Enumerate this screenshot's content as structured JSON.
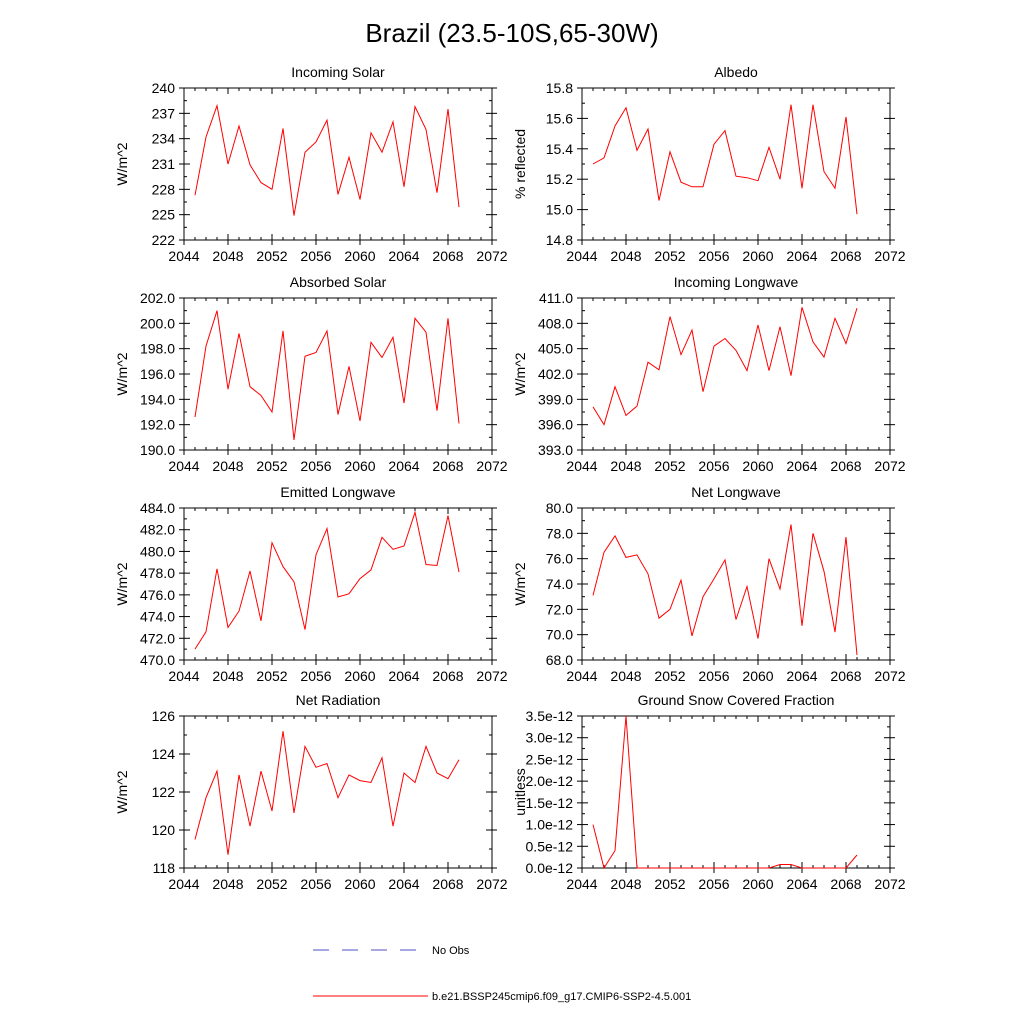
{
  "page_title": "Brazil (23.5-10S,65-30W)",
  "colors": {
    "series": "#ff0000",
    "obs": "#4f4fc8",
    "axis": "#000000",
    "background": "#ffffff"
  },
  "legend": {
    "obs_label": "No Obs",
    "model_label": "b.e21.BSSP245cmip6.f09_g17.CMIP6-SSP2-4.5.001"
  },
  "chart_data": [
    {
      "type": "line",
      "title": "Incoming Solar",
      "xlabel": "",
      "ylabel": "W/m^2",
      "xlim": [
        2044,
        2072
      ],
      "ylim": [
        222,
        240
      ],
      "xticks": [
        2044,
        2048,
        2052,
        2056,
        2060,
        2064,
        2068,
        2072
      ],
      "yticks": [
        222,
        225,
        228,
        231,
        234,
        237,
        240
      ],
      "ytick_labels": [
        "222",
        "225",
        "228",
        "231",
        "234",
        "237",
        "240"
      ],
      "series": [
        {
          "name": "b.e21.BSSP245cmip6.f09_g17.CMIP6-SSP2-4.5.001",
          "x": [
            2045,
            2046,
            2047,
            2048,
            2049,
            2050,
            2051,
            2052,
            2053,
            2054,
            2055,
            2056,
            2057,
            2058,
            2059,
            2060,
            2061,
            2062,
            2063,
            2064,
            2065,
            2066,
            2067,
            2068,
            2069
          ],
          "values": [
            227.3,
            234.2,
            237.9,
            231.0,
            235.5,
            230.9,
            228.8,
            228.0,
            235.2,
            224.9,
            232.4,
            233.6,
            236.2,
            227.4,
            231.8,
            226.8,
            234.7,
            232.4,
            236.0,
            228.3,
            237.8,
            235.1,
            227.6,
            237.5,
            225.9
          ]
        }
      ]
    },
    {
      "type": "line",
      "title": "Albedo",
      "xlabel": "",
      "ylabel": "% reflected",
      "xlim": [
        2044,
        2072
      ],
      "ylim": [
        14.8,
        15.8
      ],
      "xticks": [
        2044,
        2048,
        2052,
        2056,
        2060,
        2064,
        2068,
        2072
      ],
      "yticks": [
        14.8,
        15.0,
        15.2,
        15.4,
        15.6,
        15.8
      ],
      "ytick_labels": [
        "14.8",
        "15.0",
        "15.2",
        "15.4",
        "15.6",
        "15.8"
      ],
      "series": [
        {
          "name": "b.e21.BSSP245cmip6.f09_g17.CMIP6-SSP2-4.5.001",
          "x": [
            2045,
            2046,
            2047,
            2048,
            2049,
            2050,
            2051,
            2052,
            2053,
            2054,
            2055,
            2056,
            2057,
            2058,
            2059,
            2060,
            2061,
            2062,
            2063,
            2064,
            2065,
            2066,
            2067,
            2068,
            2069
          ],
          "values": [
            15.3,
            15.34,
            15.55,
            15.67,
            15.39,
            15.53,
            15.06,
            15.38,
            15.18,
            15.15,
            15.15,
            15.43,
            15.52,
            15.22,
            15.21,
            15.19,
            15.41,
            15.2,
            15.69,
            15.14,
            15.69,
            15.25,
            15.14,
            15.61,
            14.97
          ]
        }
      ]
    },
    {
      "type": "line",
      "title": "Absorbed Solar",
      "xlabel": "",
      "ylabel": "W/m^2",
      "xlim": [
        2044,
        2072
      ],
      "ylim": [
        190.0,
        202.0
      ],
      "xticks": [
        2044,
        2048,
        2052,
        2056,
        2060,
        2064,
        2068,
        2072
      ],
      "yticks": [
        190.0,
        192.0,
        194.0,
        196.0,
        198.0,
        200.0,
        202.0
      ],
      "ytick_labels": [
        "190.0",
        "192.0",
        "194.0",
        "196.0",
        "198.0",
        "200.0",
        "202.0"
      ],
      "series": [
        {
          "name": "b.e21.BSSP245cmip6.f09_g17.CMIP6-SSP2-4.5.001",
          "x": [
            2045,
            2046,
            2047,
            2048,
            2049,
            2050,
            2051,
            2052,
            2053,
            2054,
            2055,
            2056,
            2057,
            2058,
            2059,
            2060,
            2061,
            2062,
            2063,
            2064,
            2065,
            2066,
            2067,
            2068,
            2069
          ],
          "values": [
            192.6,
            198.2,
            201.0,
            194.8,
            199.2,
            195.0,
            194.3,
            193.0,
            199.4,
            190.8,
            197.4,
            197.7,
            199.4,
            192.8,
            196.6,
            192.3,
            198.5,
            197.3,
            198.9,
            193.7,
            200.4,
            199.3,
            193.1,
            200.4,
            192.1
          ]
        }
      ]
    },
    {
      "type": "line",
      "title": "Incoming Longwave",
      "xlabel": "",
      "ylabel": "W/m^2",
      "xlim": [
        2044,
        2072
      ],
      "ylim": [
        393.0,
        411.0
      ],
      "xticks": [
        2044,
        2048,
        2052,
        2056,
        2060,
        2064,
        2068,
        2072
      ],
      "yticks": [
        393.0,
        396.0,
        399.0,
        402.0,
        405.0,
        408.0,
        411.0
      ],
      "ytick_labels": [
        "393.0",
        "396.0",
        "399.0",
        "402.0",
        "405.0",
        "408.0",
        "411.0"
      ],
      "series": [
        {
          "name": "b.e21.BSSP245cmip6.f09_g17.CMIP6-SSP2-4.5.001",
          "x": [
            2045,
            2046,
            2047,
            2048,
            2049,
            2050,
            2051,
            2052,
            2053,
            2054,
            2055,
            2056,
            2057,
            2058,
            2059,
            2060,
            2061,
            2062,
            2063,
            2064,
            2065,
            2066,
            2067,
            2068,
            2069
          ],
          "values": [
            398.1,
            396.0,
            400.5,
            397.1,
            398.2,
            403.4,
            402.5,
            408.8,
            404.3,
            407.2,
            399.9,
            405.3,
            406.2,
            404.8,
            402.4,
            407.8,
            402.4,
            407.6,
            401.8,
            409.9,
            405.8,
            404.0,
            408.6,
            405.6,
            409.8
          ]
        }
      ]
    },
    {
      "type": "line",
      "title": "Emitted Longwave",
      "xlabel": "",
      "ylabel": "W/m^2",
      "xlim": [
        2044,
        2072
      ],
      "ylim": [
        470.0,
        484.0
      ],
      "xticks": [
        2044,
        2048,
        2052,
        2056,
        2060,
        2064,
        2068,
        2072
      ],
      "yticks": [
        470.0,
        472.0,
        474.0,
        476.0,
        478.0,
        480.0,
        482.0,
        484.0
      ],
      "ytick_labels": [
        "470.0",
        "472.0",
        "474.0",
        "476.0",
        "478.0",
        "480.0",
        "482.0",
        "484.0"
      ],
      "series": [
        {
          "name": "b.e21.BSSP245cmip6.f09_g17.CMIP6-SSP2-4.5.001",
          "x": [
            2045,
            2046,
            2047,
            2048,
            2049,
            2050,
            2051,
            2052,
            2053,
            2054,
            2055,
            2056,
            2057,
            2058,
            2059,
            2060,
            2061,
            2062,
            2063,
            2064,
            2065,
            2066,
            2067,
            2068,
            2069
          ],
          "values": [
            471.0,
            472.6,
            478.4,
            473.0,
            474.5,
            478.2,
            473.6,
            480.8,
            478.6,
            477.2,
            472.8,
            479.7,
            482.1,
            475.8,
            476.1,
            477.5,
            478.3,
            481.3,
            480.2,
            480.5,
            483.6,
            478.8,
            478.7,
            483.3,
            478.1
          ]
        }
      ]
    },
    {
      "type": "line",
      "title": "Net Longwave",
      "xlabel": "",
      "ylabel": "W/m^2",
      "xlim": [
        2044,
        2072
      ],
      "ylim": [
        68.0,
        80.0
      ],
      "xticks": [
        2044,
        2048,
        2052,
        2056,
        2060,
        2064,
        2068,
        2072
      ],
      "yticks": [
        68.0,
        70.0,
        72.0,
        74.0,
        76.0,
        78.0,
        80.0
      ],
      "ytick_labels": [
        "68.0",
        "70.0",
        "72.0",
        "74.0",
        "76.0",
        "78.0",
        "80.0"
      ],
      "series": [
        {
          "name": "b.e21.BSSP245cmip6.f09_g17.CMIP6-SSP2-4.5.001",
          "x": [
            2045,
            2046,
            2047,
            2048,
            2049,
            2050,
            2051,
            2052,
            2053,
            2054,
            2055,
            2056,
            2057,
            2058,
            2059,
            2060,
            2061,
            2062,
            2063,
            2064,
            2065,
            2066,
            2067,
            2068,
            2069
          ],
          "values": [
            73.1,
            76.5,
            77.8,
            76.1,
            76.3,
            74.8,
            71.3,
            72.0,
            74.3,
            69.9,
            73.0,
            74.4,
            75.9,
            71.2,
            73.8,
            69.7,
            76.0,
            73.6,
            78.7,
            70.7,
            78.0,
            75.0,
            70.2,
            77.7,
            68.4
          ]
        }
      ]
    },
    {
      "type": "line",
      "title": "Net Radiation",
      "xlabel": "",
      "ylabel": "W/m^2",
      "xlim": [
        2044,
        2072
      ],
      "ylim": [
        118,
        126
      ],
      "xticks": [
        2044,
        2048,
        2052,
        2056,
        2060,
        2064,
        2068,
        2072
      ],
      "yticks": [
        118,
        120,
        122,
        124,
        126
      ],
      "ytick_labels": [
        "118",
        "120",
        "122",
        "124",
        "126"
      ],
      "series": [
        {
          "name": "b.e21.BSSP245cmip6.f09_g17.CMIP6-SSP2-4.5.001",
          "x": [
            2045,
            2046,
            2047,
            2048,
            2049,
            2050,
            2051,
            2052,
            2053,
            2054,
            2055,
            2056,
            2057,
            2058,
            2059,
            2060,
            2061,
            2062,
            2063,
            2064,
            2065,
            2066,
            2067,
            2068,
            2069
          ],
          "values": [
            119.5,
            121.7,
            123.1,
            118.7,
            122.9,
            120.2,
            123.1,
            121.0,
            125.2,
            120.9,
            124.4,
            123.3,
            123.5,
            121.7,
            122.9,
            122.6,
            122.5,
            123.8,
            120.2,
            123.0,
            122.5,
            124.4,
            123.0,
            122.7,
            123.7
          ]
        }
      ]
    },
    {
      "type": "line",
      "title": "Ground Snow Covered Fraction",
      "xlabel": "",
      "ylabel": "unitless",
      "xlim": [
        2044,
        2072
      ],
      "ylim": [
        0.0,
        3.5e-12
      ],
      "xticks": [
        2044,
        2048,
        2052,
        2056,
        2060,
        2064,
        2068,
        2072
      ],
      "yticks": [
        0.0,
        5e-13,
        1e-12,
        1.5e-12,
        2e-12,
        2.5e-12,
        3e-12,
        3.5e-12
      ],
      "ytick_labels": [
        "0.0e-12",
        "0.5e-12",
        "1.0e-12",
        "1.5e-12",
        "2.0e-12",
        "2.5e-12",
        "3.0e-12",
        "3.5e-12"
      ],
      "series": [
        {
          "name": "b.e21.BSSP245cmip6.f09_g17.CMIP6-SSP2-4.5.001",
          "x": [
            2045,
            2046,
            2047,
            2048,
            2049,
            2050,
            2051,
            2052,
            2053,
            2054,
            2055,
            2056,
            2057,
            2058,
            2059,
            2060,
            2061,
            2062,
            2063,
            2064,
            2065,
            2066,
            2067,
            2068,
            2069
          ],
          "values": [
            1e-12,
            0.0,
            4e-13,
            3.5e-12,
            0.0,
            0.0,
            0.0,
            0.0,
            0.0,
            0.0,
            0.0,
            0.0,
            0.0,
            0.0,
            0.0,
            0.0,
            0.0,
            8e-14,
            8e-14,
            0.0,
            0.0,
            0.0,
            0.0,
            0.0,
            3e-13
          ]
        }
      ]
    }
  ]
}
